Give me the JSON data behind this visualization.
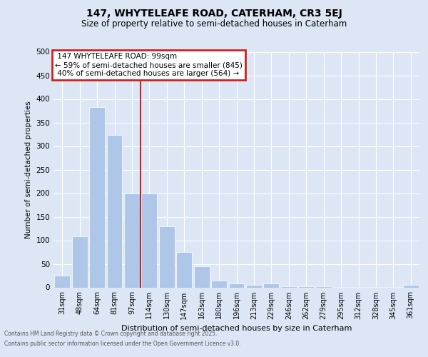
{
  "title_line1": "147, WHYTELEAFE ROAD, CATERHAM, CR3 5EJ",
  "title_line2": "Size of property relative to semi-detached houses in Caterham",
  "xlabel": "Distribution of semi-detached houses by size in Caterham",
  "ylabel": "Number of semi-detached properties",
  "categories": [
    "31sqm",
    "48sqm",
    "64sqm",
    "81sqm",
    "97sqm",
    "114sqm",
    "130sqm",
    "147sqm",
    "163sqm",
    "180sqm",
    "196sqm",
    "213sqm",
    "229sqm",
    "246sqm",
    "262sqm",
    "279sqm",
    "295sqm",
    "312sqm",
    "328sqm",
    "345sqm",
    "361sqm"
  ],
  "values": [
    25,
    108,
    383,
    323,
    200,
    200,
    130,
    75,
    45,
    15,
    8,
    5,
    8,
    3,
    2,
    2,
    1,
    1,
    1,
    1,
    5
  ],
  "bar_color": "#aec6e8",
  "property_label": "147 WHYTELEAFE ROAD: 99sqm",
  "pct_smaller": 59,
  "count_smaller": 845,
  "pct_larger": 40,
  "count_larger": 564,
  "red_line_x": 4.5,
  "ylim": [
    0,
    500
  ],
  "yticks": [
    0,
    50,
    100,
    150,
    200,
    250,
    300,
    350,
    400,
    450,
    500
  ],
  "footer_line1": "Contains HM Land Registry data © Crown copyright and database right 2025.",
  "footer_line2": "Contains public sector information licensed under the Open Government Licence v3.0.",
  "bg_color": "#dce6f5",
  "plot_bg_color": "#dce6f5",
  "box_color": "#cc2222",
  "title_fontsize": 10,
  "subtitle_fontsize": 8.5
}
